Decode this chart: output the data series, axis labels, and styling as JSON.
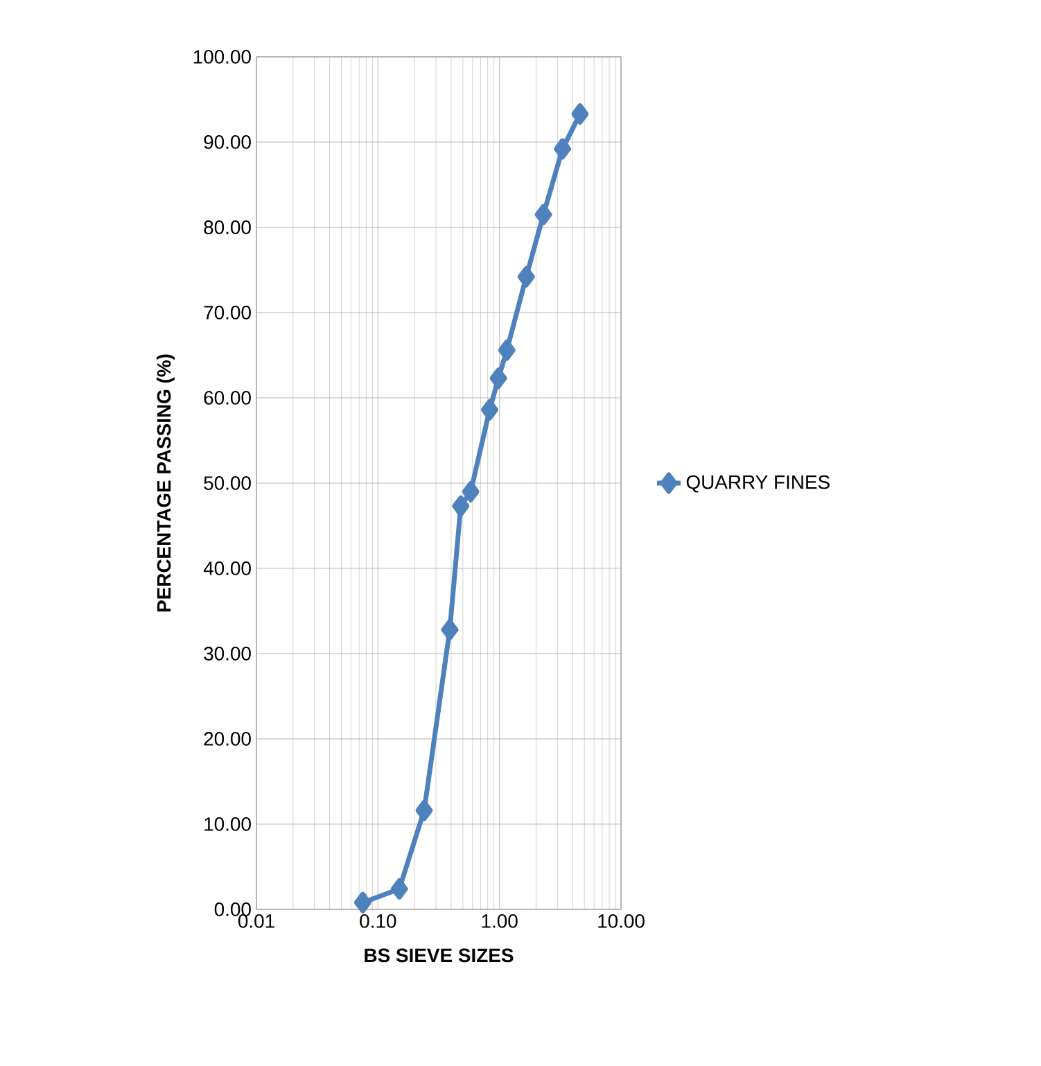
{
  "chart_data": {
    "type": "line",
    "xlabel": "BS SIEVE SIZES",
    "ylabel": "PERCENTAGE PASSING (%)",
    "log": "x",
    "grid": true,
    "legend": "right",
    "marker": "diamond",
    "line_style": "solid",
    "xlim": [
      0.01,
      10
    ],
    "xticks": [
      0.01,
      {
        "value": 0.1,
        "label": "0.10"
      },
      {
        "value": 1,
        "label": "1.00"
      },
      {
        "value": 10,
        "label": "10.00"
      }
    ],
    "ylim": [
      0,
      100
    ],
    "yticks": [
      {
        "value": 0,
        "label": "0.00"
      },
      {
        "value": 10,
        "label": "10.00"
      },
      {
        "value": 20,
        "label": "20.00"
      },
      {
        "value": 30,
        "label": "30.00"
      },
      {
        "value": 40,
        "label": "40.00"
      },
      {
        "value": 50,
        "label": "50.00"
      },
      {
        "value": 60,
        "label": "60.00"
      },
      {
        "value": 70,
        "label": "70.00"
      },
      {
        "value": 80,
        "label": "80.00"
      },
      {
        "value": 90,
        "label": "90.00"
      },
      {
        "value": 100,
        "label": "100.00"
      }
    ],
    "series": [
      {
        "name": "QUARRY FINES",
        "color": "#4f81bd",
        "x": [
          0.075,
          0.15,
          0.24,
          0.39,
          0.48,
          0.58,
          0.83,
          0.98,
          1.15,
          1.66,
          2.3,
          3.3,
          4.6
        ],
        "values": [
          0.8,
          2.4,
          11.6,
          32.8,
          47.3,
          49.0,
          58.6,
          62.3,
          65.6,
          74.2,
          81.5,
          89.2,
          93.3
        ]
      }
    ]
  }
}
